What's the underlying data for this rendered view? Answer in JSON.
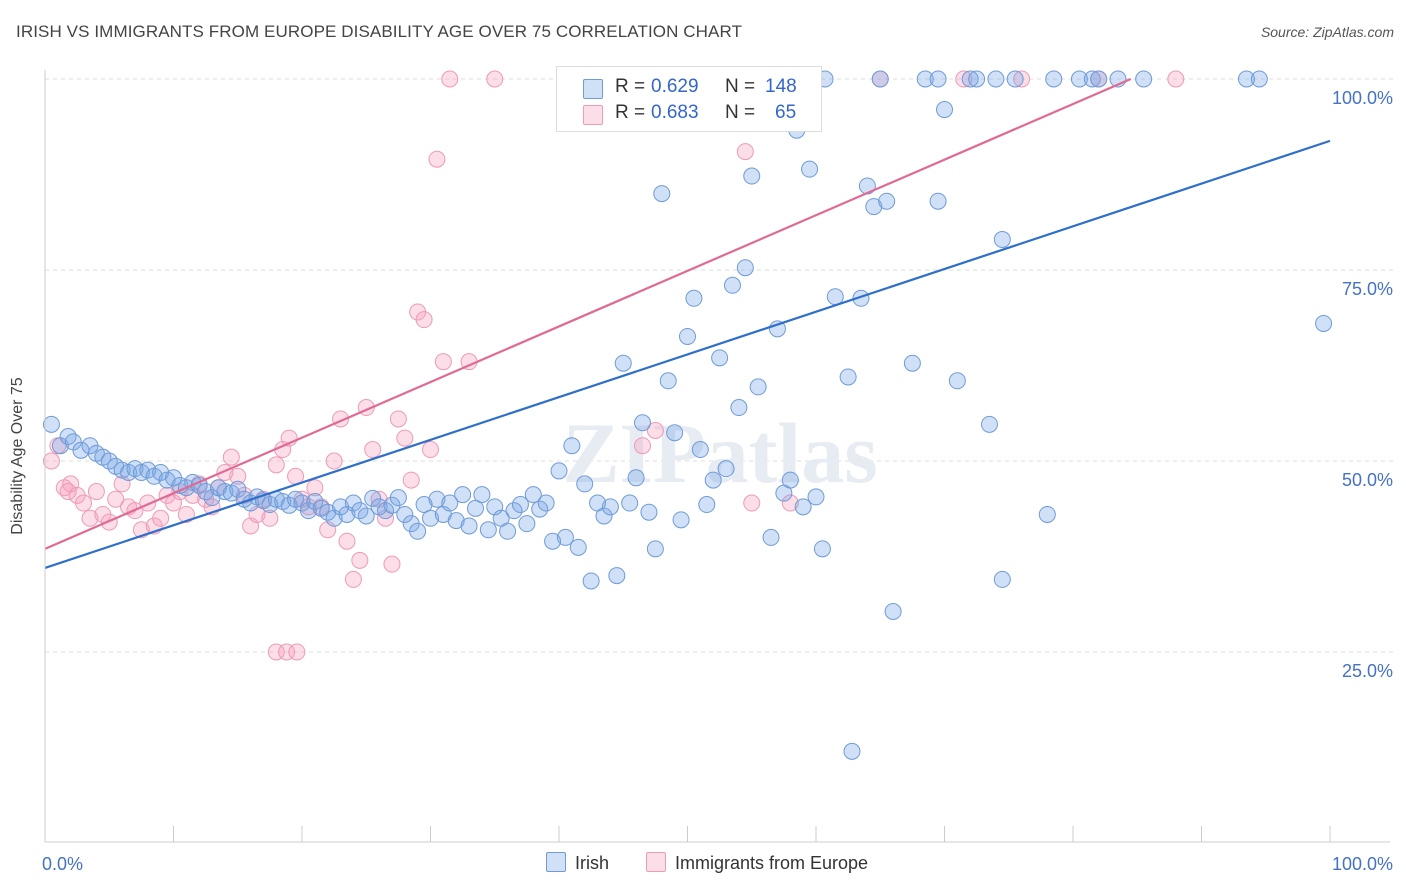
{
  "title": "IRISH VS IMMIGRANTS FROM EUROPE DISABILITY AGE OVER 75 CORRELATION CHART",
  "source": "Source: ZipAtlas.com",
  "watermark": "ZIPatlas",
  "colors": {
    "irish_fill": "rgba(120,165,230,0.35)",
    "irish_stroke": "#6f9bd8",
    "irish_line": "#2f6fcc",
    "europe_fill": "rgba(245,160,190,0.35)",
    "europe_stroke": "#ef9ab6",
    "europe_line": "#e06a95",
    "axis_text": "#4472c4",
    "grid": "#dddddd"
  },
  "legend": {
    "irish": {
      "r_label": "R =",
      "r_value": "0.629",
      "n_label": "N =",
      "n_value": "148"
    },
    "europe": {
      "r_label": "R =",
      "r_value": "0.683",
      "n_label": "N =",
      "n_value": "65"
    }
  },
  "bottom_legend": {
    "irish": "Irish",
    "europe": "Immigrants from Europe"
  },
  "chart_data": {
    "type": "scatter",
    "title": "IRISH VS IMMIGRANTS FROM EUROPE DISABILITY AGE OVER 75 CORRELATION CHART",
    "xlabel": "",
    "ylabel": "Disability Age Over 75",
    "xlim": [
      0,
      100
    ],
    "ylim": [
      0,
      101
    ],
    "x_tick_labels": [
      "0.0%",
      "100.0%"
    ],
    "y_ticks": [
      25,
      50,
      75,
      100
    ],
    "y_tick_labels": [
      "25.0%",
      "50.0%",
      "75.0%",
      "100.0%"
    ],
    "grid": true,
    "legend_placement": "top-center",
    "series": [
      {
        "name": "Irish",
        "r": 0.629,
        "n": 148,
        "trend": {
          "x": [
            0,
            100
          ],
          "y": [
            36.0,
            91.9
          ]
        },
        "points": [
          [
            0.5,
            54.8
          ],
          [
            1.2,
            52.0
          ],
          [
            1.8,
            53.2
          ],
          [
            2.2,
            52.5
          ],
          [
            2.8,
            51.4
          ],
          [
            3.5,
            52.0
          ],
          [
            4.0,
            51.0
          ],
          [
            4.5,
            50.5
          ],
          [
            5.0,
            50.0
          ],
          [
            5.5,
            49.3
          ],
          [
            6.0,
            48.8
          ],
          [
            6.5,
            48.5
          ],
          [
            7.0,
            49.0
          ],
          [
            7.5,
            48.5
          ],
          [
            8.0,
            48.8
          ],
          [
            8.5,
            48.0
          ],
          [
            9.0,
            48.5
          ],
          [
            9.5,
            47.5
          ],
          [
            10.0,
            47.8
          ],
          [
            10.5,
            46.8
          ],
          [
            11.0,
            46.5
          ],
          [
            11.5,
            47.2
          ],
          [
            12.0,
            46.8
          ],
          [
            12.5,
            46.0
          ],
          [
            13.0,
            45.2
          ],
          [
            13.5,
            46.5
          ],
          [
            14.0,
            46.0
          ],
          [
            14.5,
            45.8
          ],
          [
            15.0,
            46.3
          ],
          [
            15.5,
            45.0
          ],
          [
            16.0,
            44.5
          ],
          [
            16.5,
            45.3
          ],
          [
            17.0,
            44.8
          ],
          [
            17.5,
            44.3
          ],
          [
            18.0,
            45.0
          ],
          [
            18.5,
            44.7
          ],
          [
            19.0,
            44.2
          ],
          [
            19.5,
            45.0
          ],
          [
            20.0,
            44.5
          ],
          [
            20.5,
            43.5
          ],
          [
            21.0,
            44.7
          ],
          [
            21.5,
            43.8
          ],
          [
            22.0,
            43.3
          ],
          [
            22.5,
            42.5
          ],
          [
            23.0,
            44.0
          ],
          [
            23.5,
            43.0
          ],
          [
            24.0,
            44.5
          ],
          [
            24.5,
            43.5
          ],
          [
            25.0,
            42.8
          ],
          [
            25.5,
            45.1
          ],
          [
            26.0,
            44.0
          ],
          [
            26.5,
            43.5
          ],
          [
            27.0,
            44.2
          ],
          [
            27.5,
            45.2
          ],
          [
            28.0,
            43.0
          ],
          [
            28.5,
            41.8
          ],
          [
            29.0,
            40.8
          ],
          [
            29.5,
            44.3
          ],
          [
            30.0,
            42.5
          ],
          [
            30.5,
            45.0
          ],
          [
            31.0,
            43.0
          ],
          [
            31.5,
            44.5
          ],
          [
            32.0,
            42.2
          ],
          [
            32.5,
            45.6
          ],
          [
            33.0,
            41.5
          ],
          [
            33.5,
            43.8
          ],
          [
            34.0,
            45.6
          ],
          [
            34.5,
            41.0
          ],
          [
            35.0,
            44.0
          ],
          [
            35.5,
            42.5
          ],
          [
            36.0,
            40.8
          ],
          [
            36.5,
            43.5
          ],
          [
            37.0,
            44.3
          ],
          [
            37.5,
            41.8
          ],
          [
            38.0,
            45.6
          ],
          [
            38.5,
            43.7
          ],
          [
            39.0,
            44.5
          ],
          [
            39.5,
            39.5
          ],
          [
            40.0,
            48.7
          ],
          [
            40.5,
            40.0
          ],
          [
            41.0,
            52.0
          ],
          [
            41.5,
            38.7
          ],
          [
            42.0,
            47.0
          ],
          [
            42.5,
            34.3
          ],
          [
            43.0,
            44.5
          ],
          [
            43.5,
            42.8
          ],
          [
            44.0,
            44.0
          ],
          [
            44.5,
            35.0
          ],
          [
            45.0,
            62.8
          ],
          [
            45.5,
            44.5
          ],
          [
            46.0,
            47.8
          ],
          [
            46.5,
            55.0
          ],
          [
            47.0,
            43.3
          ],
          [
            47.5,
            38.5
          ],
          [
            48.0,
            85.0
          ],
          [
            48.5,
            60.5
          ],
          [
            49.0,
            53.7
          ],
          [
            49.5,
            42.3
          ],
          [
            50.0,
            66.3
          ],
          [
            50.5,
            71.3
          ],
          [
            51.0,
            51.5
          ],
          [
            51.5,
            44.3
          ],
          [
            52.0,
            47.5
          ],
          [
            52.5,
            63.5
          ],
          [
            53.0,
            49.0
          ],
          [
            53.5,
            73.0
          ],
          [
            54.0,
            57.0
          ],
          [
            54.5,
            75.3
          ],
          [
            55.0,
            87.3
          ],
          [
            55.5,
            59.7
          ],
          [
            56.5,
            40.0
          ],
          [
            57.0,
            67.3
          ],
          [
            57.5,
            45.8
          ],
          [
            58.0,
            47.5
          ],
          [
            58.5,
            93.3
          ],
          [
            59.0,
            44.0
          ],
          [
            59.5,
            88.2
          ],
          [
            60.0,
            45.3
          ],
          [
            60.5,
            38.5
          ],
          [
            60.7,
            100.0
          ],
          [
            61.5,
            71.5
          ],
          [
            62.5,
            61.0
          ],
          [
            63.5,
            71.3
          ],
          [
            64.0,
            86.0
          ],
          [
            64.5,
            83.3
          ],
          [
            65.0,
            100.0
          ],
          [
            65.5,
            84.0
          ],
          [
            66.0,
            30.3
          ],
          [
            67.5,
            62.8
          ],
          [
            68.5,
            100.0
          ],
          [
            69.5,
            100.0
          ],
          [
            69.5,
            84.0
          ],
          [
            70.0,
            96.0
          ],
          [
            71.0,
            60.5
          ],
          [
            72.0,
            100.0
          ],
          [
            72.5,
            100.0
          ],
          [
            73.5,
            54.8
          ],
          [
            74.0,
            100.0
          ],
          [
            74.5,
            79.0
          ],
          [
            75.5,
            100.0
          ],
          [
            78.0,
            43.0
          ],
          [
            78.5,
            100.0
          ],
          [
            80.5,
            100.0
          ],
          [
            81.5,
            100.0
          ],
          [
            82.0,
            100.0
          ],
          [
            83.5,
            100.0
          ],
          [
            85.5,
            100.0
          ],
          [
            93.5,
            100.0
          ],
          [
            94.5,
            100.0
          ],
          [
            99.5,
            68.0
          ],
          [
            62.8,
            12.0
          ],
          [
            74.5,
            34.5
          ]
        ]
      },
      {
        "name": "Immigrants from Europe",
        "r": 0.683,
        "n": 65,
        "trend": {
          "x": [
            0,
            84.5
          ],
          "y": [
            38.5,
            100
          ]
        },
        "points": [
          [
            0.5,
            50.0
          ],
          [
            1.0,
            52.0
          ],
          [
            1.5,
            46.5
          ],
          [
            2.0,
            47.0
          ],
          [
            2.5,
            45.5
          ],
          [
            3.0,
            44.5
          ],
          [
            3.5,
            42.5
          ],
          [
            4.0,
            46.0
          ],
          [
            4.5,
            43.0
          ],
          [
            5.0,
            42.0
          ],
          [
            5.5,
            45.0
          ],
          [
            6.0,
            47.0
          ],
          [
            6.5,
            44.0
          ],
          [
            7.0,
            43.5
          ],
          [
            7.5,
            41.0
          ],
          [
            8.0,
            44.5
          ],
          [
            8.5,
            41.5
          ],
          [
            9.0,
            42.5
          ],
          [
            9.5,
            45.5
          ],
          [
            10.0,
            44.5
          ],
          [
            10.5,
            46.0
          ],
          [
            11.0,
            43.0
          ],
          [
            11.5,
            45.5
          ],
          [
            12.0,
            47.0
          ],
          [
            12.5,
            45.0
          ],
          [
            13.0,
            44.0
          ],
          [
            13.5,
            46.5
          ],
          [
            14.0,
            48.5
          ],
          [
            14.5,
            50.5
          ],
          [
            15.0,
            48.0
          ],
          [
            15.5,
            45.5
          ],
          [
            16.0,
            41.5
          ],
          [
            16.5,
            43.0
          ],
          [
            17.0,
            45.0
          ],
          [
            17.5,
            42.5
          ],
          [
            18.0,
            49.5
          ],
          [
            18.5,
            51.5
          ],
          [
            19.0,
            53.0
          ],
          [
            19.5,
            48.0
          ],
          [
            20.0,
            45.0
          ],
          [
            20.5,
            44.0
          ],
          [
            21.0,
            46.5
          ],
          [
            21.5,
            44.0
          ],
          [
            22.0,
            41.0
          ],
          [
            22.5,
            50.0
          ],
          [
            23.0,
            55.5
          ],
          [
            23.5,
            39.5
          ],
          [
            24.0,
            34.5
          ],
          [
            24.5,
            37.0
          ],
          [
            25.0,
            57.0
          ],
          [
            25.5,
            51.5
          ],
          [
            26.0,
            45.0
          ],
          [
            26.5,
            42.5
          ],
          [
            27.0,
            36.5
          ],
          [
            27.5,
            55.5
          ],
          [
            28.0,
            53.0
          ],
          [
            28.5,
            47.5
          ],
          [
            29.0,
            69.5
          ],
          [
            29.5,
            68.5
          ],
          [
            30.0,
            51.5
          ],
          [
            30.5,
            89.5
          ],
          [
            31.0,
            63.0
          ],
          [
            31.5,
            100.0
          ],
          [
            33.0,
            63.0
          ],
          [
            35.0,
            100.0
          ],
          [
            46.5,
            52.0
          ],
          [
            47.5,
            54.0
          ],
          [
            54.5,
            90.5
          ],
          [
            55.0,
            44.5
          ],
          [
            57.5,
            100.0
          ],
          [
            58.0,
            44.5
          ],
          [
            65.0,
            100.0
          ],
          [
            71.5,
            100.0
          ],
          [
            76.0,
            100.0
          ],
          [
            82.0,
            100.0
          ],
          [
            88.0,
            100.0
          ],
          [
            18.0,
            25.0
          ],
          [
            18.8,
            25.0
          ],
          [
            19.6,
            25.0
          ],
          [
            1.8,
            46.0
          ]
        ]
      }
    ]
  }
}
